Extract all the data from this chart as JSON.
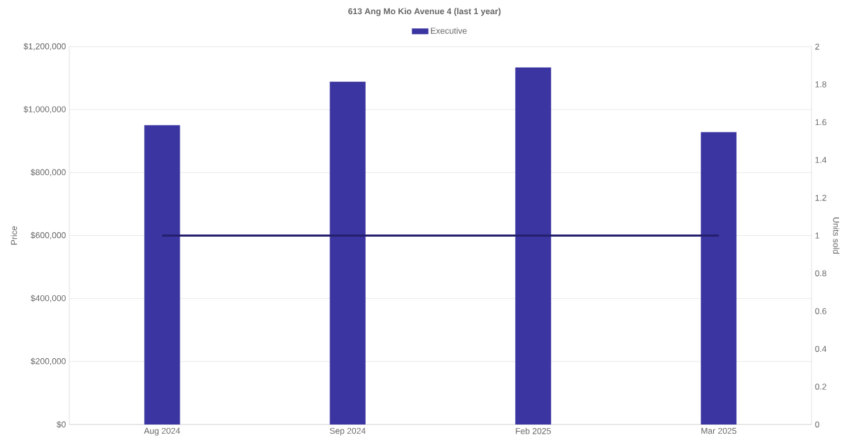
{
  "chart_data": {
    "type": "bar",
    "title": "613 Ang Mo Kio Avenue 4 (last 1 year)",
    "ylabel": "Price",
    "y2label": "Units sold",
    "categories": [
      "Aug 2024",
      "Sep 2024",
      "Feb 2025",
      "Mar 2025"
    ],
    "series": [
      {
        "name": "Executive",
        "color": "#3a35a0",
        "values": [
          950000,
          1088000,
          1133000,
          928000
        ]
      },
      {
        "type": "line",
        "axis": "y2",
        "color": "#24206e",
        "values": [
          1,
          1,
          1,
          1
        ]
      }
    ],
    "ylim": [
      0,
      1200000
    ],
    "yticks": [
      {
        "value": 0,
        "label": "$0"
      },
      {
        "value": 200000,
        "label": "$200,000"
      },
      {
        "value": 400000,
        "label": "$400,000"
      },
      {
        "value": 600000,
        "label": "$600,000"
      },
      {
        "value": 800000,
        "label": "$800,000"
      },
      {
        "value": 1000000,
        "label": "$1,000,000"
      },
      {
        "value": 1200000,
        "label": "$1,200,000"
      }
    ],
    "y2lim": [
      0,
      2
    ],
    "y2ticks": [
      0,
      0.2,
      0.4,
      0.6,
      0.8,
      1,
      1.2,
      1.4,
      1.6,
      1.8,
      2
    ],
    "grid": "y",
    "legend": "top"
  }
}
